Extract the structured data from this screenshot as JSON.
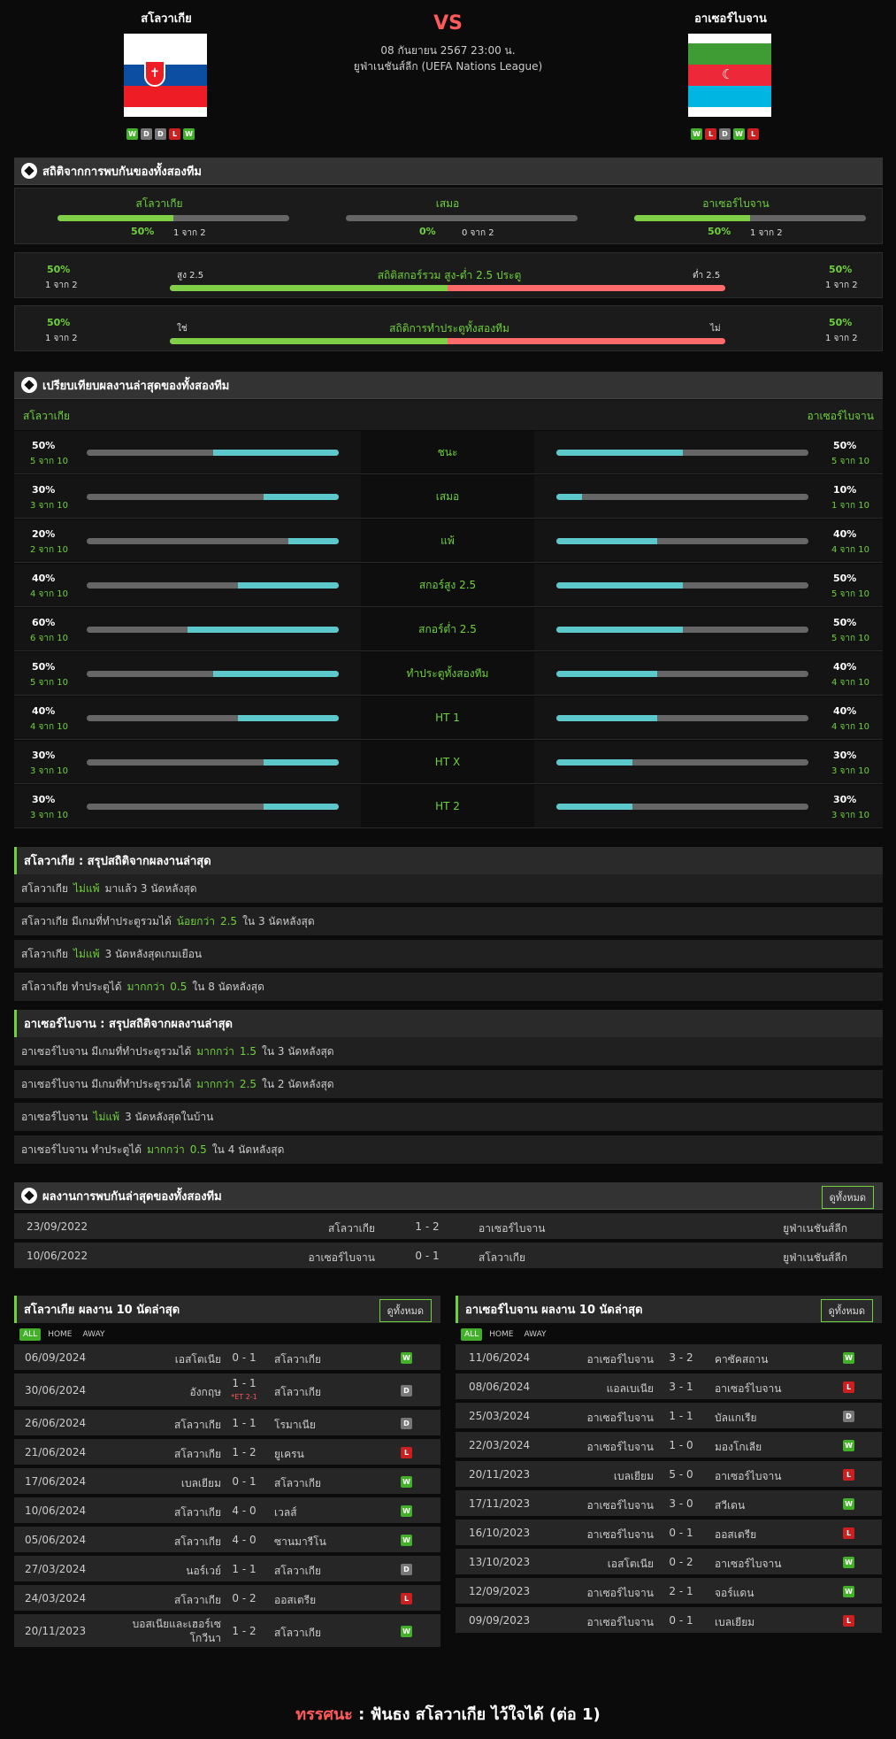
{
  "match": {
    "vs": "VS",
    "date": "08 กันยายน 2567 23:00 น.",
    "league": "ยูฟ่าเนชันส์ลีก (UEFA Nations League)"
  },
  "home": {
    "name": "สโลวาเกีย",
    "form": [
      "W",
      "D",
      "D",
      "L",
      "W"
    ]
  },
  "away": {
    "name": "อาเซอร์ไบจาน",
    "form": [
      "W",
      "L",
      "D",
      "W",
      "L"
    ]
  },
  "colors": {
    "accent": "#6fd13b",
    "bar_cyan": "#5cc8cc",
    "bar_red": "#ff6b6b",
    "win": "#43b02a",
    "draw": "#777777",
    "loss": "#cc1f1f",
    "vs": "#ff5a5a"
  },
  "h2h_stats": {
    "title": "สถิติจากการพบกันของทั้งสองทีม",
    "cols": [
      {
        "label": "สโลวาเกีย",
        "pct": "50%",
        "count": "1 จาก 2",
        "fill": 0.5
      },
      {
        "label": "เสมอ",
        "pct": "0%",
        "count": "0 จาก 2",
        "fill": 0
      },
      {
        "label": "อาเซอร์ไบจาน",
        "pct": "50%",
        "count": "1 จาก 2",
        "fill": 0.5
      }
    ],
    "ou": {
      "title": "สถิติสกอร์รวม สูง-ต่ำ 2.5 ประตู",
      "left_label": "สูง 2.5",
      "right_label": "ต่ำ 2.5",
      "lpct": "50%",
      "lcount": "1 จาก 2",
      "rpct": "50%",
      "rcount": "1 จาก 2",
      "fill": 0.5
    },
    "btts": {
      "title": "สถิติการทำประตูทั้งสองทีม",
      "left_label": "ใช่",
      "right_label": "ไม่",
      "lpct": "50%",
      "lcount": "1 จาก 2",
      "rpct": "50%",
      "rcount": "1 จาก 2",
      "fill": 0.5
    }
  },
  "compare": {
    "title": "เปรียบเทียบผลงานล่าสุดของทั้งสองทีม",
    "home_label": "สโลวาเกีย",
    "away_label": "อาเซอร์ไบจาน",
    "rows": [
      {
        "label": "ชนะ",
        "lpct": "50%",
        "lcount": "5 จาก 10",
        "lfill": 0.5,
        "rpct": "50%",
        "rcount": "5 จาก 10",
        "rfill": 0.5
      },
      {
        "label": "เสมอ",
        "lpct": "30%",
        "lcount": "3 จาก 10",
        "lfill": 0.3,
        "rpct": "10%",
        "rcount": "1 จาก 10",
        "rfill": 0.1
      },
      {
        "label": "แพ้",
        "lpct": "20%",
        "lcount": "2 จาก 10",
        "lfill": 0.2,
        "rpct": "40%",
        "rcount": "4 จาก 10",
        "rfill": 0.4
      },
      {
        "label": "สกอร์สูง 2.5",
        "lpct": "40%",
        "lcount": "4 จาก 10",
        "lfill": 0.4,
        "rpct": "50%",
        "rcount": "5 จาก 10",
        "rfill": 0.5
      },
      {
        "label": "สกอร์ต่ำ 2.5",
        "lpct": "60%",
        "lcount": "6 จาก 10",
        "lfill": 0.6,
        "rpct": "50%",
        "rcount": "5 จาก 10",
        "rfill": 0.5
      },
      {
        "label": "ทำประตูทั้งสองทีม",
        "lpct": "50%",
        "lcount": "5 จาก 10",
        "lfill": 0.5,
        "rpct": "40%",
        "rcount": "4 จาก 10",
        "rfill": 0.4
      },
      {
        "label": "HT 1",
        "lpct": "40%",
        "lcount": "4 จาก 10",
        "lfill": 0.4,
        "rpct": "40%",
        "rcount": "4 จาก 10",
        "rfill": 0.4
      },
      {
        "label": "HT X",
        "lpct": "30%",
        "lcount": "3 จาก 10",
        "lfill": 0.3,
        "rpct": "30%",
        "rcount": "3 จาก 10",
        "rfill": 0.3
      },
      {
        "label": "HT 2",
        "lpct": "30%",
        "lcount": "3 จาก 10",
        "lfill": 0.3,
        "rpct": "30%",
        "rcount": "3 จาก 10",
        "rfill": 0.3
      }
    ]
  },
  "summary_home": {
    "title": "สโลวาเกีย : สรุปสถิติจากผลงานล่าสุด",
    "lines": [
      {
        "a": "สโลวาเกีย",
        "b": "ไม่แพ้",
        "c": "",
        "d": "มาแล้ว 3 นัดหลังสุด"
      },
      {
        "a": "สโลวาเกีย  มีเกมที่ทำประตูรวมได้",
        "b": "น้อยกว่า",
        "c": "2.5",
        "d": "ใน 3 นัดหลังสุด"
      },
      {
        "a": "สโลวาเกีย",
        "b": "ไม่แพ้",
        "c": "",
        "d": "3  นัดหลังสุดเกมเยือน"
      },
      {
        "a": "สโลวาเกีย  ทำประตูได้",
        "b": "มากกว่า",
        "c": "0.5",
        "d": "ใน 8 นัดหลังสุด"
      }
    ]
  },
  "summary_away": {
    "title": "อาเซอร์ไบจาน : สรุปสถิติจากผลงานล่าสุด",
    "lines": [
      {
        "a": "อาเซอร์ไบจาน  มีเกมที่ทำประตูรวมได้",
        "b": "มากกว่า",
        "c": "1.5",
        "d": "ใน 3 นัดหลังสุด"
      },
      {
        "a": "อาเซอร์ไบจาน  มีเกมที่ทำประตูรวมได้",
        "b": "มากกว่า",
        "c": "2.5",
        "d": "ใน 2 นัดหลังสุด"
      },
      {
        "a": "อาเซอร์ไบจาน",
        "b": "ไม่แพ้",
        "c": "",
        "d": "3  นัดหลังสุดในบ้าน"
      },
      {
        "a": "อาเซอร์ไบจาน  ทำประตูได้",
        "b": "มากกว่า",
        "c": "0.5",
        "d": "ใน 4 นัดหลังสุด"
      }
    ]
  },
  "h2h": {
    "title": "ผลงานการพบกันล่าสุดของทั้งสองทีม",
    "view_all": "ดูทั้งหมด",
    "rows": [
      {
        "date": "23/09/2022",
        "home": "สโลวาเกีย",
        "score": "1 - 2",
        "away": "อาเซอร์ไบจาน",
        "league": "ยูฟ่าเนชันส์ลีก"
      },
      {
        "date": "10/06/2022",
        "home": "อาเซอร์ไบจาน",
        "score": "0 - 1",
        "away": "สโลวาเกีย",
        "league": "ยูฟ่าเนชันส์ลีก"
      }
    ]
  },
  "last_home": {
    "title": "สโลวาเกีย ผลงาน 10 นัดล่าสุด",
    "view_all": "ดูทั้งหมด",
    "tabs": [
      "ALL",
      "HOME",
      "AWAY"
    ],
    "rows": [
      {
        "date": "06/09/2024",
        "home": "เอสโตเนีย",
        "score": "0 - 1",
        "note": "",
        "away": "สโลวาเกีย",
        "res": "W"
      },
      {
        "date": "30/06/2024",
        "home": "อังกฤษ",
        "score": "1 - 1",
        "note": "*ET 2-1",
        "away": "สโลวาเกีย",
        "res": "D"
      },
      {
        "date": "26/06/2024",
        "home": "สโลวาเกีย",
        "score": "1 - 1",
        "note": "",
        "away": "โรมาเนีย",
        "res": "D"
      },
      {
        "date": "21/06/2024",
        "home": "สโลวาเกีย",
        "score": "1 - 2",
        "note": "",
        "away": "ยูเครน",
        "res": "L"
      },
      {
        "date": "17/06/2024",
        "home": "เบลเยียม",
        "score": "0 - 1",
        "note": "",
        "away": "สโลวาเกีย",
        "res": "W"
      },
      {
        "date": "10/06/2024",
        "home": "สโลวาเกีย",
        "score": "4 - 0",
        "note": "",
        "away": "เวลส์",
        "res": "W"
      },
      {
        "date": "05/06/2024",
        "home": "สโลวาเกีย",
        "score": "4 - 0",
        "note": "",
        "away": "ซานมารีโน",
        "res": "W"
      },
      {
        "date": "27/03/2024",
        "home": "นอร์เวย์",
        "score": "1 - 1",
        "note": "",
        "away": "สโลวาเกีย",
        "res": "D"
      },
      {
        "date": "24/03/2024",
        "home": "สโลวาเกีย",
        "score": "0 - 2",
        "note": "",
        "away": "ออสเตรีย",
        "res": "L"
      },
      {
        "date": "20/11/2023",
        "home": "บอสเนียและเฮอร์เซโกวีนา",
        "score": "1 - 2",
        "note": "",
        "away": "สโลวาเกีย",
        "res": "W"
      }
    ]
  },
  "last_away": {
    "title": "อาเซอร์ไบจาน ผลงาน 10 นัดล่าสุด",
    "view_all": "ดูทั้งหมด",
    "tabs": [
      "ALL",
      "HOME",
      "AWAY"
    ],
    "rows": [
      {
        "date": "11/06/2024",
        "home": "อาเซอร์ไบจาน",
        "score": "3 - 2",
        "away": "คาซัคสถาน",
        "res": "W"
      },
      {
        "date": "08/06/2024",
        "home": "แอลเบเนีย",
        "score": "3 - 1",
        "away": "อาเซอร์ไบจาน",
        "res": "L"
      },
      {
        "date": "25/03/2024",
        "home": "อาเซอร์ไบจาน",
        "score": "1 - 1",
        "away": "บัลแกเรีย",
        "res": "D"
      },
      {
        "date": "22/03/2024",
        "home": "อาเซอร์ไบจาน",
        "score": "1 - 0",
        "away": "มองโกเลีย",
        "res": "W"
      },
      {
        "date": "20/11/2023",
        "home": "เบลเยียม",
        "score": "5 - 0",
        "away": "อาเซอร์ไบจาน",
        "res": "L"
      },
      {
        "date": "17/11/2023",
        "home": "อาเซอร์ไบจาน",
        "score": "3 - 0",
        "away": "สวีเดน",
        "res": "W"
      },
      {
        "date": "16/10/2023",
        "home": "อาเซอร์ไบจาน",
        "score": "0 - 1",
        "away": "ออสเตรีย",
        "res": "L"
      },
      {
        "date": "13/10/2023",
        "home": "เอสโตเนีย",
        "score": "0 - 2",
        "away": "อาเซอร์ไบจาน",
        "res": "W"
      },
      {
        "date": "12/09/2023",
        "home": "อาเซอร์ไบจาน",
        "score": "2 - 1",
        "away": "จอร์แดน",
        "res": "W"
      },
      {
        "date": "09/09/2023",
        "home": "อาเซอร์ไบจาน",
        "score": "0 - 1",
        "away": "เบลเยียม",
        "res": "L"
      }
    ]
  },
  "verdict": {
    "label": "ทรรศนะ",
    "sep": ":",
    "text": "ฟันธง สโลวาเกีย ไว้ใจได้ (ต่อ 1)"
  }
}
